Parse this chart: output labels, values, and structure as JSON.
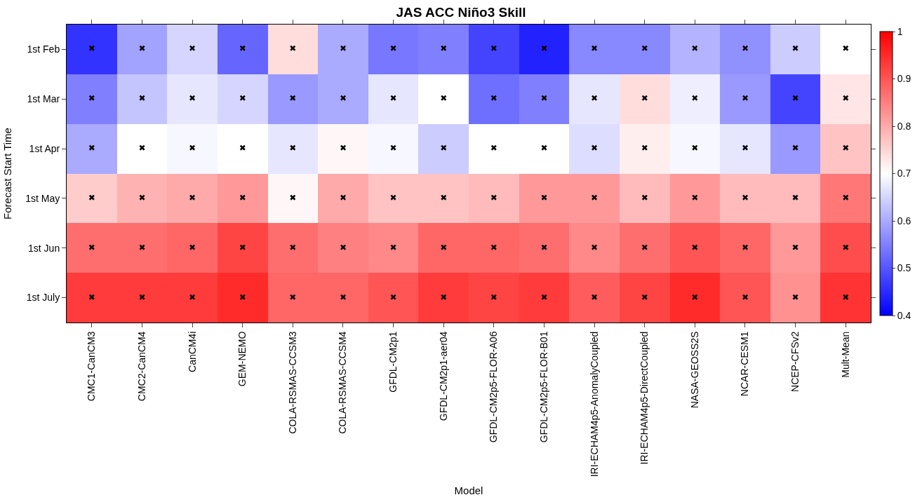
{
  "chart_data": {
    "type": "heatmap",
    "title": "JAS ACC Niño3 Skill",
    "xlabel": "Model",
    "ylabel": "Forecast Start Time",
    "categories": [
      "CMC1-CanCM3",
      "CMC2-CanCM4",
      "CanCM4i",
      "GEM-NEMO",
      "COLA-RSMAS-CCSM3",
      "COLA-RSMAS-CCSM4",
      "GFDL-CM2p1",
      "GFDL-CM2p1-aer04",
      "GFDL-CM2p5-FLOR-A06",
      "GFDL-CM2p5-FLOR-B01",
      "IRI-ECHAM4p5-AnomalyCoupled",
      "IRI-ECHAM4p5-DirectCoupled",
      "NASA-GEOSS2S",
      "NCAR-CESM1",
      "NCEP-CFSv2",
      "Mult-Mean"
    ],
    "y_categories": [
      "1st Feb",
      "1st Mar",
      "1st Apr",
      "1st May",
      "1st Jun",
      "1st July"
    ],
    "cells": [
      [
        0.46,
        0.59,
        0.65,
        0.52,
        0.74,
        0.6,
        0.54,
        0.55,
        0.48,
        0.44,
        0.56,
        0.56,
        0.61,
        0.57,
        0.64,
        0.7
      ],
      [
        0.55,
        0.63,
        0.67,
        0.65,
        0.58,
        0.6,
        0.67,
        0.7,
        0.53,
        0.55,
        0.67,
        0.74,
        0.68,
        0.58,
        0.48,
        0.73
      ],
      [
        0.6,
        0.7,
        0.69,
        0.7,
        0.67,
        0.71,
        0.69,
        0.64,
        0.7,
        0.7,
        0.66,
        0.72,
        0.69,
        0.67,
        0.58,
        0.77
      ],
      [
        0.76,
        0.79,
        0.8,
        0.82,
        0.71,
        0.8,
        0.77,
        0.77,
        0.78,
        0.82,
        0.82,
        0.78,
        0.82,
        0.78,
        0.78,
        0.86
      ],
      [
        0.87,
        0.87,
        0.88,
        0.92,
        0.87,
        0.85,
        0.84,
        0.88,
        0.88,
        0.87,
        0.84,
        0.87,
        0.9,
        0.88,
        0.82,
        0.91
      ],
      [
        0.93,
        0.93,
        0.93,
        0.95,
        0.88,
        0.88,
        0.9,
        0.93,
        0.92,
        0.93,
        0.89,
        0.92,
        0.95,
        0.9,
        0.83,
        0.94
      ]
    ],
    "cell_labels": [
      [
        "✖",
        "✖",
        "✖",
        "✖",
        "✖",
        "✖",
        "✖",
        "✖",
        "✖",
        "✖",
        "✖",
        "✖",
        "✖",
        "✖",
        "✖",
        "✖"
      ],
      [
        "✖",
        "✖",
        "✖",
        "✖",
        "✖",
        "✖",
        "✖",
        "✖",
        "✖",
        "✖",
        "✖",
        "✖",
        "✖",
        "✖",
        "✖",
        "✖"
      ],
      [
        "✖",
        "✖",
        "✖",
        "✖",
        "✖",
        "✖",
        "✖",
        "✖",
        "✖",
        "✖",
        "✖",
        "✖",
        "✖",
        "✖",
        "✖",
        "✖"
      ],
      [
        "✖",
        "✖",
        "✖",
        "✖",
        "✖",
        "✖",
        "✖",
        "✖",
        "✖",
        "✖",
        "✖",
        "✖",
        "✖",
        "✖",
        "✖",
        "✖"
      ],
      [
        "✖",
        "✖",
        "✖",
        "✖",
        "✖",
        "✖",
        "✖",
        "✖",
        "✖",
        "✖",
        "✖",
        "✖",
        "✖",
        "✖",
        "✖",
        "✖"
      ],
      [
        "✖",
        "✖",
        "✖",
        "✖",
        "✖",
        "✖",
        "✖",
        "✖",
        "✖",
        "✖",
        "✖",
        "✖",
        "✖",
        "✖",
        "✖",
        "✖"
      ]
    ],
    "clim": [
      0.4,
      1
    ],
    "cticks": [
      0.4,
      0.5,
      0.6,
      0.7,
      0.8,
      0.9,
      1
    ]
  }
}
